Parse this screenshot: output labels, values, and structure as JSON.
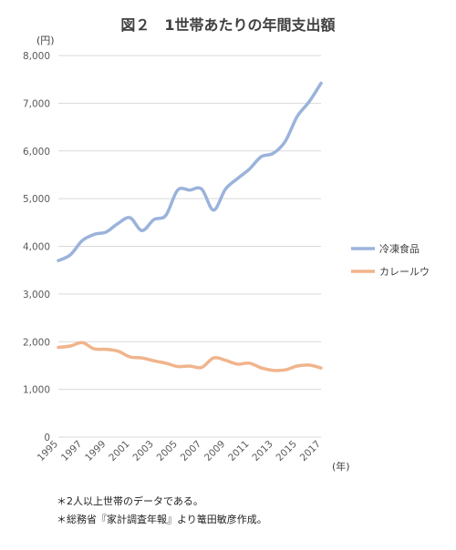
{
  "chart_data": {
    "type": "line",
    "title": "図２　1世帯あたりの年間支出額",
    "y_unit": "(円)",
    "x_unit": "(年)",
    "ylim": [
      0,
      8000
    ],
    "yticks": [
      0,
      1000,
      2000,
      3000,
      4000,
      5000,
      6000,
      7000,
      8000
    ],
    "ytick_labels": [
      "0",
      "1,000",
      "2,000",
      "3,000",
      "4,000",
      "5,000",
      "6,000",
      "7,000",
      "8,000"
    ],
    "grid": true,
    "legend_position": "right",
    "x": [
      1995,
      1996,
      1997,
      1998,
      1999,
      2000,
      2001,
      2002,
      2003,
      2004,
      2005,
      2006,
      2007,
      2008,
      2009,
      2010,
      2011,
      2012,
      2013,
      2014,
      2015,
      2016,
      2017
    ],
    "xtick_labels": [
      "1995",
      "1997",
      "1999",
      "2001",
      "2003",
      "2005",
      "2007",
      "2009",
      "2011",
      "2013",
      "2015",
      "2017"
    ],
    "series": [
      {
        "name": "冷凍食品",
        "color": "#9bb3db",
        "values": [
          3700,
          3820,
          4120,
          4250,
          4300,
          4480,
          4600,
          4330,
          4560,
          4650,
          5180,
          5180,
          5200,
          4760,
          5200,
          5420,
          5620,
          5880,
          5950,
          6200,
          6720,
          7030,
          7420
        ]
      },
      {
        "name": "カレールウ",
        "color": "#f0b48c",
        "values": [
          1880,
          1910,
          1980,
          1850,
          1840,
          1800,
          1680,
          1660,
          1600,
          1550,
          1480,
          1490,
          1460,
          1660,
          1610,
          1530,
          1550,
          1450,
          1400,
          1410,
          1490,
          1510,
          1450
        ]
      }
    ]
  },
  "notes": [
    "＊2人以上世帯のデータである。",
    "＊総務省『家計調査年報』より篭田敏彦作成。"
  ]
}
